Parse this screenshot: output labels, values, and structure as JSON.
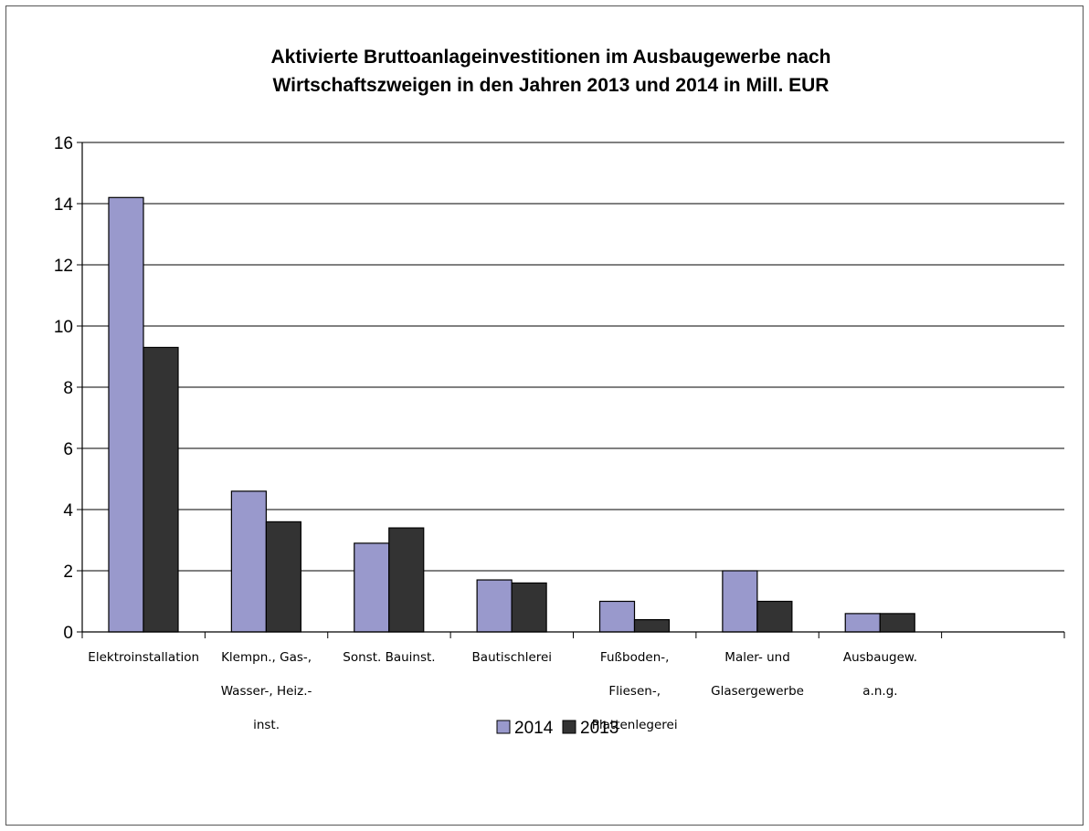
{
  "chart_data": {
    "type": "bar",
    "title_lines": [
      "Aktivierte Bruttoanlageinvestitionen im Ausbaugewerbe nach",
      "Wirtschaftszweigen in den Jahren 2013 und 2014 in Mill. EUR"
    ],
    "categories": [
      [
        "Elektroinstallation"
      ],
      [
        "Klempn., Gas-,",
        "Wasser-, Heiz.-",
        "inst."
      ],
      [
        "Sonst. Bauinst."
      ],
      [
        "Bautischlerei"
      ],
      [
        "Fußboden-,",
        "Fliesen-,",
        "Plattenlegerei"
      ],
      [
        "Maler- und",
        "Glasergewerbe"
      ],
      [
        "Ausbaugew.",
        "a.n.g."
      ],
      [
        ""
      ]
    ],
    "series": [
      {
        "name": "2014",
        "color": "#9999cc",
        "values": [
          14.2,
          4.6,
          2.9,
          1.7,
          1.0,
          2.0,
          0.6,
          null
        ]
      },
      {
        "name": "2013",
        "color": "#333333",
        "values": [
          9.3,
          3.6,
          3.4,
          1.6,
          0.4,
          1.0,
          0.6,
          null
        ]
      }
    ],
    "yticks": [
      0,
      2,
      4,
      6,
      8,
      10,
      12,
      14,
      16
    ],
    "ylim": [
      0,
      16
    ],
    "xlabel": "",
    "ylabel": "",
    "grid": true,
    "legend_position": "bottom"
  }
}
